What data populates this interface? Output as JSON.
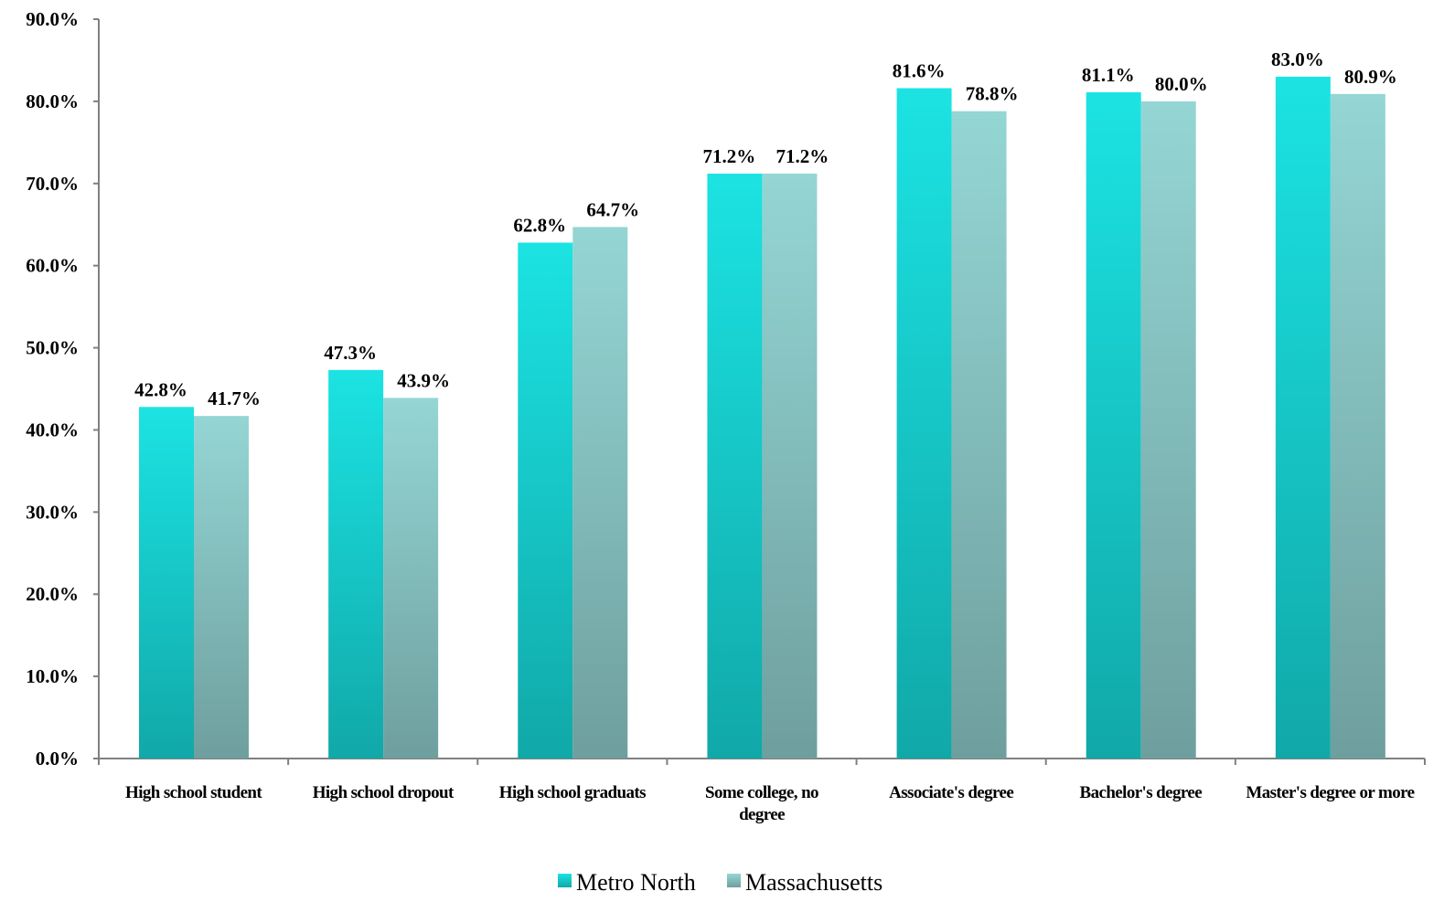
{
  "chart_data": {
    "type": "bar",
    "categories": [
      "High school student",
      "High school dropout",
      "High school graduats",
      "Some college, no degree",
      "Associate's degree",
      "Bachelor's degree",
      "Master's degree or more"
    ],
    "category_lines": [
      [
        "High school student"
      ],
      [
        "High school dropout"
      ],
      [
        "High school graduats"
      ],
      [
        "Some college, no",
        "degree"
      ],
      [
        "Associate's degree"
      ],
      [
        "Bachelor's degree"
      ],
      [
        "Master's degree or more"
      ]
    ],
    "series": [
      {
        "name": "Metro North",
        "values": [
          42.8,
          47.3,
          62.8,
          71.2,
          81.6,
          81.1,
          83.0
        ],
        "labels": [
          "42.8%",
          "47.3%",
          "62.8%",
          "71.2%",
          "81.6%",
          "81.1%",
          "83.0%"
        ],
        "color_top": "#1ce3e3",
        "color_bottom": "#11a8a8"
      },
      {
        "name": "Massachusetts",
        "values": [
          41.7,
          43.9,
          64.7,
          71.2,
          78.8,
          80.0,
          80.9
        ],
        "labels": [
          "41.7%",
          "43.9%",
          "64.7%",
          "71.2%",
          "78.8%",
          "80.0%",
          "80.9%"
        ],
        "color_top": "#94d6d4",
        "color_bottom": "#6e9f9e"
      }
    ],
    "title": "",
    "xlabel": "",
    "ylabel": "",
    "ylim": [
      0,
      90
    ],
    "yticks": [
      "0.0%",
      "10.0%",
      "20.0%",
      "30.0%",
      "40.0%",
      "50.0%",
      "60.0%",
      "70.0%",
      "80.0%",
      "90.0%"
    ],
    "grid": false,
    "legend_position": "bottom-center"
  }
}
